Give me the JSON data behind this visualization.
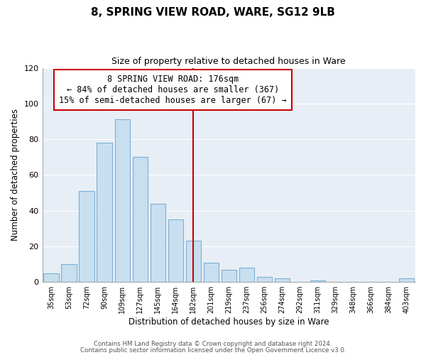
{
  "title": "8, SPRING VIEW ROAD, WARE, SG12 9LB",
  "subtitle": "Size of property relative to detached houses in Ware",
  "xlabel": "Distribution of detached houses by size in Ware",
  "ylabel": "Number of detached properties",
  "bar_labels": [
    "35sqm",
    "53sqm",
    "72sqm",
    "90sqm",
    "109sqm",
    "127sqm",
    "145sqm",
    "164sqm",
    "182sqm",
    "201sqm",
    "219sqm",
    "237sqm",
    "256sqm",
    "274sqm",
    "292sqm",
    "311sqm",
    "329sqm",
    "348sqm",
    "366sqm",
    "384sqm",
    "403sqm"
  ],
  "bar_values": [
    5,
    10,
    51,
    78,
    91,
    70,
    44,
    35,
    23,
    11,
    7,
    8,
    3,
    2,
    0,
    1,
    0,
    0,
    0,
    0,
    2
  ],
  "bar_color": "#c8dff0",
  "bar_edge_color": "#7bafd4",
  "vline_x_index": 8,
  "vline_color": "#cc0000",
  "annotation_line1": "8 SPRING VIEW ROAD: 176sqm",
  "annotation_line2": "← 84% of detached houses are smaller (367)",
  "annotation_line3": "15% of semi-detached houses are larger (67) →",
  "annotation_box_edge_color": "#cc0000",
  "ylim": [
    0,
    120
  ],
  "yticks": [
    0,
    20,
    40,
    60,
    80,
    100,
    120
  ],
  "grid_color": "#ffffff",
  "bg_color": "#e8eef5",
  "footer_line1": "Contains HM Land Registry data © Crown copyright and database right 2024.",
  "footer_line2": "Contains public sector information licensed under the Open Government Licence v3.0."
}
